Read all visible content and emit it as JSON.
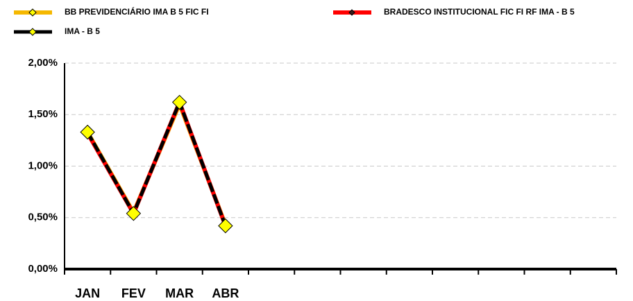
{
  "chart_data": {
    "type": "line",
    "categories": [
      "JAN",
      "FEV",
      "MAR",
      "ABR",
      null,
      null,
      null,
      null,
      null,
      null,
      null,
      null
    ],
    "series": [
      {
        "name": "BB PREVIDENCIÁRIO IMA B 5 FIC FI",
        "color": "#f5b800",
        "marker_color": "#ffff00",
        "values": [
          1.33,
          0.55,
          1.6,
          0.43,
          null,
          null,
          null,
          null,
          null,
          null,
          null,
          null
        ]
      },
      {
        "name": "BRADESCO INSTITUCIONAL FIC FI RF IMA - B 5",
        "color": "#ff0000",
        "marker_color": "#3a1a1a",
        "values": [
          1.32,
          0.54,
          1.62,
          0.42,
          null,
          null,
          null,
          null,
          null,
          null,
          null,
          null
        ]
      },
      {
        "name": "IMA - B 5",
        "color": "#000000",
        "marker_color": "#ffff00",
        "values": [
          1.33,
          0.54,
          1.62,
          0.42,
          null,
          null,
          null,
          null,
          null,
          null,
          null,
          null
        ]
      }
    ],
    "ylim": [
      0,
      2
    ],
    "yticks": [
      {
        "value": 0,
        "label": "0,00%"
      },
      {
        "value": 0.5,
        "label": "0,50%"
      },
      {
        "value": 1,
        "label": "1,00%"
      },
      {
        "value": 1.5,
        "label": "1,50%"
      },
      {
        "value": 2,
        "label": "2,00%"
      }
    ],
    "grid": true,
    "legend": "top"
  }
}
